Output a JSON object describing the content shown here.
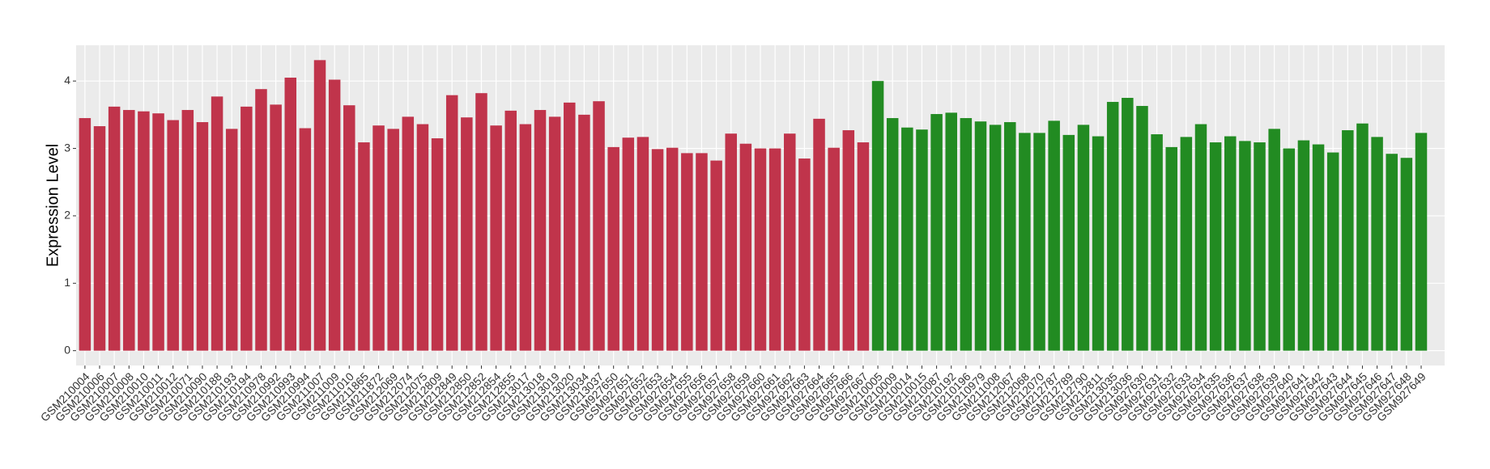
{
  "chart_data": {
    "type": "bar",
    "y_label": "Expression Level",
    "ylim": [
      -0.22,
      4.53
    ],
    "yticks": [
      0,
      1,
      2,
      3,
      4
    ],
    "grid": true,
    "series": [
      {
        "color": "#c0344b",
        "categories": [
          "GSM210004",
          "GSM210006",
          "GSM210007",
          "GSM210008",
          "GSM210010",
          "GSM210011",
          "GSM210012",
          "GSM210071",
          "GSM210090",
          "GSM210188",
          "GSM210193",
          "GSM210194",
          "GSM210978",
          "GSM210992",
          "GSM210993",
          "GSM210994",
          "GSM211007",
          "GSM211009",
          "GSM211010",
          "GSM211865",
          "GSM211872",
          "GSM212069",
          "GSM212074",
          "GSM212075",
          "GSM212809",
          "GSM212849",
          "GSM212850",
          "GSM212852",
          "GSM212854",
          "GSM212855",
          "GSM213017",
          "GSM213018",
          "GSM213019",
          "GSM213020",
          "GSM213034",
          "GSM213037",
          "GSM927650",
          "GSM927651",
          "GSM927652",
          "GSM927653",
          "GSM927654",
          "GSM927655",
          "GSM927656",
          "GSM927657",
          "GSM927658",
          "GSM927659",
          "GSM927660",
          "GSM927661",
          "GSM927662",
          "GSM927663",
          "GSM927664",
          "GSM927665",
          "GSM927666",
          "GSM927667"
        ],
        "values": [
          3.45,
          3.33,
          3.62,
          3.57,
          3.55,
          3.52,
          3.42,
          3.57,
          3.39,
          3.77,
          3.29,
          3.62,
          3.88,
          3.65,
          4.05,
          3.3,
          4.31,
          4.02,
          3.64,
          3.09,
          3.34,
          3.29,
          3.47,
          3.36,
          3.15,
          3.79,
          3.46,
          3.82,
          3.34,
          3.56,
          3.36,
          3.57,
          3.47,
          3.68,
          3.5,
          3.7,
          3.02,
          3.16,
          3.17,
          2.99,
          3.01,
          2.93,
          2.93,
          2.82,
          3.22,
          3.07,
          3.0,
          3.0,
          3.22,
          2.85,
          3.44,
          3.01,
          3.27,
          3.09
        ]
      },
      {
        "color": "#228b22",
        "categories": [
          "GSM210005",
          "GSM210009",
          "GSM210014",
          "GSM210015",
          "GSM210087",
          "GSM210192",
          "GSM210196",
          "GSM210979",
          "GSM211008",
          "GSM212067",
          "GSM212068",
          "GSM212070",
          "GSM212787",
          "GSM212789",
          "GSM212790",
          "GSM212811",
          "GSM213035",
          "GSM213036",
          "GSM927630",
          "GSM927631",
          "GSM927632",
          "GSM927633",
          "GSM927634",
          "GSM927635",
          "GSM927636",
          "GSM927637",
          "GSM927638",
          "GSM927639",
          "GSM927640",
          "GSM927641",
          "GSM927642",
          "GSM927643",
          "GSM927644",
          "GSM927645",
          "GSM927646",
          "GSM927647",
          "GSM927648",
          "GSM927649"
        ],
        "values": [
          4.0,
          3.45,
          3.31,
          3.28,
          3.51,
          3.53,
          3.45,
          3.4,
          3.35,
          3.39,
          3.23,
          3.23,
          3.41,
          3.2,
          3.35,
          3.18,
          3.69,
          3.75,
          3.63,
          3.21,
          3.02,
          3.17,
          3.36,
          3.09,
          3.18,
          3.11,
          3.09,
          3.29,
          3.0,
          3.12,
          3.06,
          2.94,
          3.27,
          3.37,
          3.17,
          2.92,
          2.86,
          3.23
        ]
      }
    ]
  }
}
